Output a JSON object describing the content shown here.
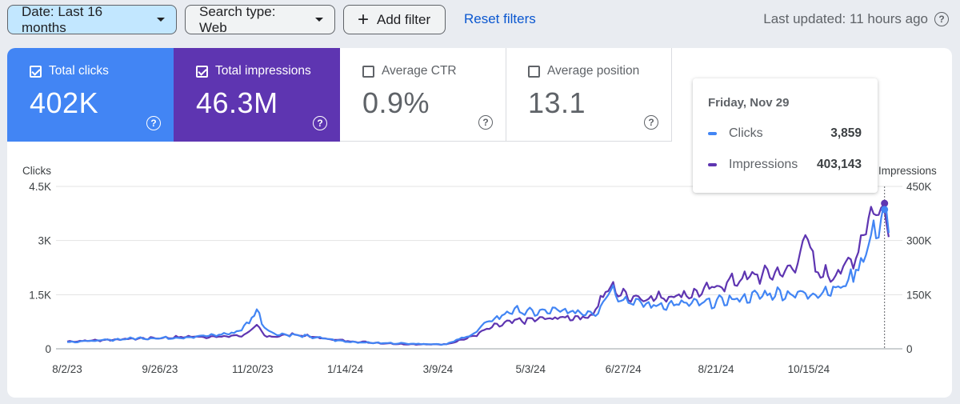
{
  "toolbar": {
    "date_filter": "Date: Last 16 months",
    "search_type": "Search type: Web",
    "add_filter": "Add filter",
    "reset_filters": "Reset filters",
    "last_updated": "Last updated: 11 hours ago"
  },
  "metrics": [
    {
      "label": "Total clicks",
      "value": "402K",
      "checked": true
    },
    {
      "label": "Total impressions",
      "value": "46.3M",
      "checked": true
    },
    {
      "label": "Average CTR",
      "value": "0.9%",
      "checked": false
    },
    {
      "label": "Average position",
      "value": "13.1",
      "checked": false
    }
  ],
  "tooltip": {
    "date": "Friday, Nov 29",
    "clicks_label": "Clicks",
    "clicks_value": "3,859",
    "impressions_label": "Impressions",
    "impressions_value": "403,143"
  },
  "colors": {
    "clicks": "#4285f4",
    "impressions": "#5e35b1"
  },
  "chart_data": {
    "type": "line",
    "left_axis_label": "Clicks",
    "right_axis_label": "Impressions",
    "left_ylim": [
      0,
      4500
    ],
    "right_ylim": [
      0,
      450000
    ],
    "left_ticks": [
      "0",
      "1.5K",
      "3K",
      "4.5K"
    ],
    "right_ticks": [
      "0",
      "150K",
      "300K",
      "450K"
    ],
    "x_tick_labels": [
      "8/2/23",
      "9/26/23",
      "11/20/23",
      "1/14/24",
      "3/9/24",
      "5/3/24",
      "6/27/24",
      "8/21/24",
      "10/15/24"
    ],
    "x_range_days": [
      0,
      485
    ],
    "x_tick_days": [
      0,
      55,
      110,
      165,
      220,
      275,
      330,
      385,
      440
    ],
    "hover_day": 485,
    "series": [
      {
        "name": "Clicks",
        "axis": "left",
        "keys": [
          [
            0,
            190
          ],
          [
            20,
            230
          ],
          [
            40,
            290
          ],
          [
            60,
            300
          ],
          [
            75,
            330
          ],
          [
            90,
            390
          ],
          [
            100,
            450
          ],
          [
            108,
            720
          ],
          [
            112,
            1130
          ],
          [
            116,
            680
          ],
          [
            122,
            420
          ],
          [
            135,
            380
          ],
          [
            150,
            300
          ],
          [
            165,
            200
          ],
          [
            185,
            160
          ],
          [
            200,
            150
          ],
          [
            215,
            130
          ],
          [
            225,
            130
          ],
          [
            240,
            390
          ],
          [
            250,
            750
          ],
          [
            265,
            1080
          ],
          [
            275,
            1000
          ],
          [
            290,
            1050
          ],
          [
            305,
            1010
          ],
          [
            315,
            1030
          ],
          [
            322,
            1700
          ],
          [
            330,
            1380
          ],
          [
            345,
            1200
          ],
          [
            360,
            1230
          ],
          [
            380,
            1260
          ],
          [
            400,
            1400
          ],
          [
            420,
            1540
          ],
          [
            440,
            1510
          ],
          [
            460,
            1700
          ],
          [
            470,
            2300
          ],
          [
            478,
            3150
          ],
          [
            482,
            3500
          ],
          [
            485,
            3859
          ],
          [
            488,
            3100
          ]
        ]
      },
      {
        "name": "Impressions",
        "axis": "right",
        "keys": [
          [
            0,
            20000
          ],
          [
            20,
            24000
          ],
          [
            40,
            28000
          ],
          [
            60,
            31000
          ],
          [
            75,
            34000
          ],
          [
            90,
            33000
          ],
          [
            105,
            38000
          ],
          [
            112,
            63000
          ],
          [
            118,
            33000
          ],
          [
            135,
            40000
          ],
          [
            150,
            30000
          ],
          [
            165,
            22000
          ],
          [
            185,
            16000
          ],
          [
            200,
            13000
          ],
          [
            215,
            12000
          ],
          [
            225,
            13000
          ],
          [
            240,
            33000
          ],
          [
            252,
            60000
          ],
          [
            265,
            76000
          ],
          [
            280,
            82000
          ],
          [
            300,
            88000
          ],
          [
            310,
            88000
          ],
          [
            322,
            172000
          ],
          [
            330,
            150000
          ],
          [
            345,
            140000
          ],
          [
            360,
            148000
          ],
          [
            375,
            155000
          ],
          [
            390,
            180000
          ],
          [
            405,
            200000
          ],
          [
            420,
            210000
          ],
          [
            432,
            220000
          ],
          [
            438,
            330000
          ],
          [
            444,
            210000
          ],
          [
            455,
            205000
          ],
          [
            465,
            240000
          ],
          [
            470,
            280000
          ],
          [
            475,
            370000
          ],
          [
            480,
            375000
          ],
          [
            485,
            403143
          ],
          [
            488,
            310000
          ]
        ]
      }
    ]
  }
}
